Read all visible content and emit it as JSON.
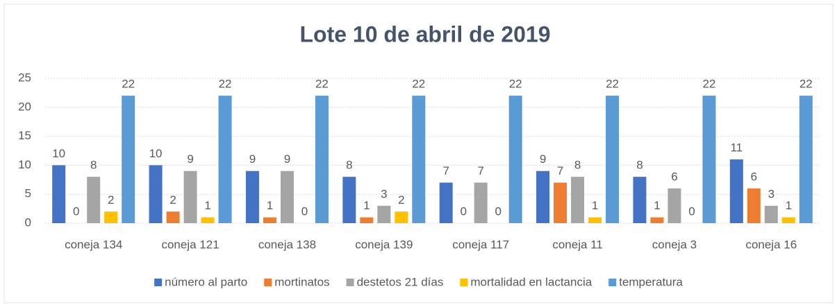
{
  "chart_data": {
    "type": "bar",
    "title": "Lote 10 de abril de 2019",
    "categories": [
      "coneja 134",
      "coneja 121",
      "coneja 138",
      "coneja 139",
      "coneja 117",
      "coneja 11",
      "coneja 3",
      "coneja 16"
    ],
    "series": [
      {
        "name": "número al parto",
        "color": "#4472c4",
        "values": [
          10,
          10,
          9,
          8,
          7,
          9,
          8,
          11
        ]
      },
      {
        "name": "mortinatos",
        "color": "#ed7d31",
        "values": [
          0,
          2,
          1,
          1,
          0,
          7,
          1,
          6
        ]
      },
      {
        "name": "destetos 21 días",
        "color": "#a5a5a5",
        "values": [
          8,
          9,
          9,
          3,
          7,
          8,
          6,
          3
        ]
      },
      {
        "name": "mortalidad en lactancia",
        "color": "#ffc000",
        "values": [
          2,
          1,
          0,
          2,
          0,
          1,
          0,
          1
        ]
      },
      {
        "name": "temperatura",
        "color": "#5b9bd5",
        "values": [
          22,
          22,
          22,
          22,
          22,
          22,
          22,
          22
        ]
      }
    ],
    "ylim": [
      0,
      25
    ],
    "yticks": [
      0,
      5,
      10,
      15,
      20,
      25
    ],
    "grid": true,
    "legend": "bottom"
  }
}
